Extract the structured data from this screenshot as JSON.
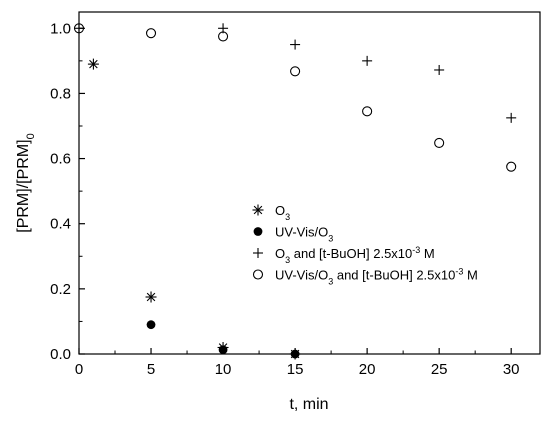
{
  "chart_data": {
    "type": "scatter",
    "xlabel": "t, min",
    "ylabel": {
      "main": "[PRM]/[PRM]",
      "sub": "0"
    },
    "xlim": [
      0,
      32
    ],
    "ylim": [
      0,
      1.05
    ],
    "xticks": [
      0,
      5,
      10,
      15,
      20,
      25,
      30
    ],
    "yticks": [
      0.0,
      0.2,
      0.4,
      0.6,
      0.8,
      1.0
    ],
    "xtick_labels": [
      "0",
      "5",
      "10",
      "15",
      "20",
      "25",
      "30"
    ],
    "ytick_labels": [
      "0.0",
      "0.2",
      "0.4",
      "0.6",
      "0.8",
      "1.0"
    ],
    "grid": false,
    "legend_position": "center-right",
    "series": [
      {
        "name": "O3",
        "legend": {
          "parts": [
            {
              "t": "O"
            },
            {
              "t": "3",
              "sub": true
            }
          ]
        },
        "marker": "asterisk",
        "points": [
          [
            1,
            0.89
          ],
          [
            5,
            0.175
          ],
          [
            10,
            0.02
          ],
          [
            15,
            0.0
          ]
        ]
      },
      {
        "name": "UV-Vis/O3",
        "legend": {
          "parts": [
            {
              "t": "UV-Vis/O"
            },
            {
              "t": "3",
              "sub": true
            }
          ]
        },
        "marker": "filled-circle",
        "points": [
          [
            5,
            0.09
          ],
          [
            10,
            0.013
          ],
          [
            15,
            0.0
          ]
        ]
      },
      {
        "name": "O3 and [t-BuOH] 2.5x10-3 M",
        "legend": {
          "parts": [
            {
              "t": "O"
            },
            {
              "t": "3",
              "sub": true
            },
            {
              "t": " and [t-BuOH] 2.5x10"
            },
            {
              "t": "-3",
              "sup": true
            },
            {
              "t": " M"
            }
          ]
        },
        "marker": "plus",
        "points": [
          [
            0,
            1.0
          ],
          [
            10,
            1.0
          ],
          [
            15,
            0.95
          ],
          [
            20,
            0.9
          ],
          [
            25,
            0.872
          ],
          [
            30,
            0.725
          ]
        ]
      },
      {
        "name": "UV-Vis/O3 and [t-BuOH] 2.5x10-3 M",
        "legend": {
          "parts": [
            {
              "t": "UV-Vis/O"
            },
            {
              "t": "3",
              "sub": true
            },
            {
              "t": " and [t-BuOH] 2.5x10"
            },
            {
              "t": "-3",
              "sup": true
            },
            {
              "t": " M"
            }
          ]
        },
        "marker": "open-circle",
        "points": [
          [
            0,
            1.0
          ],
          [
            5,
            0.985
          ],
          [
            10,
            0.975
          ],
          [
            15,
            0.868
          ],
          [
            20,
            0.745
          ],
          [
            25,
            0.648
          ],
          [
            30,
            0.575
          ]
        ]
      }
    ]
  }
}
